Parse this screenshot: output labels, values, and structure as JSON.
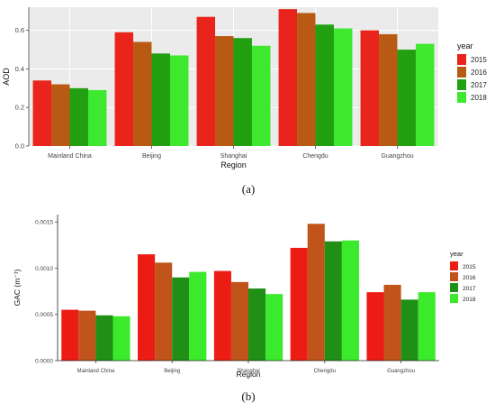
{
  "chart_data": [
    {
      "type": "bar",
      "panel_label": "(a)",
      "xlabel": "Region",
      "ylabel": "AOD",
      "categories": [
        "Mainland China",
        "Beijing",
        "Shanghai",
        "Chengdu",
        "Guangzhou"
      ],
      "ylim": [
        0,
        0.72
      ],
      "yticks": [
        "0.0",
        "0.2",
        "0.4",
        "0.6"
      ],
      "ytick_values": [
        0,
        0.2,
        0.4,
        0.6
      ],
      "grid": true,
      "legend_title": "year",
      "legend_position": "right",
      "series": [
        {
          "name": "2015",
          "color": "#e8241c",
          "values": [
            0.34,
            0.59,
            0.67,
            0.71,
            0.6
          ]
        },
        {
          "name": "2016",
          "color": "#b85a14",
          "values": [
            0.32,
            0.54,
            0.57,
            0.69,
            0.58
          ]
        },
        {
          "name": "2017",
          "color": "#22a012",
          "values": [
            0.3,
            0.48,
            0.56,
            0.63,
            0.5
          ]
        },
        {
          "name": "2018",
          "color": "#3ee82e",
          "values": [
            0.29,
            0.47,
            0.52,
            0.61,
            0.53
          ]
        }
      ]
    },
    {
      "type": "bar",
      "panel_label": "(b)",
      "xlabel": "Region",
      "ylabel": "GAC (m⁻¹)",
      "categories": [
        "Mainland China",
        "Beijing",
        "Shanghai",
        "Chengdu",
        "Guangzhou"
      ],
      "ylim": [
        0,
        0.00158
      ],
      "yticks": [
        "0.0000",
        "0.0005",
        "0.0010",
        "0.0015"
      ],
      "ytick_values": [
        0,
        0.0005,
        0.001,
        0.0015
      ],
      "grid": false,
      "legend_title": "year",
      "legend_position": "right",
      "series": [
        {
          "name": "2015",
          "color": "#ec1c14",
          "values": [
            0.00055,
            0.00115,
            0.00097,
            0.00122,
            0.00074
          ]
        },
        {
          "name": "2016",
          "color": "#c0541a",
          "values": [
            0.00054,
            0.00106,
            0.00085,
            0.00148,
            0.00082
          ]
        },
        {
          "name": "2017",
          "color": "#1f8f16",
          "values": [
            0.00049,
            0.0009,
            0.00078,
            0.00129,
            0.00066
          ]
        },
        {
          "name": "2018",
          "color": "#3cea2c",
          "values": [
            0.00048,
            0.00096,
            0.00072,
            0.0013,
            0.00074
          ]
        }
      ]
    }
  ]
}
